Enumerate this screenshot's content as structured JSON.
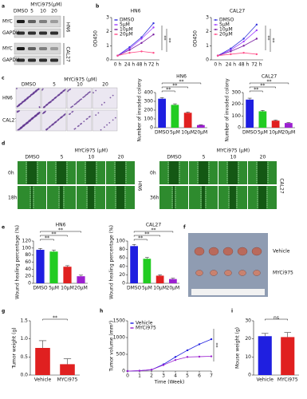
{
  "panel_labels": [
    "a",
    "b",
    "c",
    "d",
    "e",
    "f",
    "g",
    "h",
    "i"
  ],
  "blot": {
    "header": "MYCi975(μM)",
    "lanes": [
      "DMSO",
      "5",
      "10",
      "20"
    ],
    "rows": [
      "MYC",
      "GAPDH",
      "MYC",
      "GAPDH"
    ],
    "groups": [
      "HN6",
      "CAL27"
    ]
  },
  "colony": {
    "treatment": "MYCi975 (μM)",
    "columns": [
      "DMSO",
      "5",
      "10",
      "20"
    ],
    "rows": [
      "HN6",
      "CAL27"
    ]
  },
  "wound": [
    {
      "treatment": "MYCi975 (μM)",
      "columns": [
        "DMSO",
        "5",
        "10",
        "20"
      ],
      "rows": [
        "0h",
        "18h"
      ],
      "cell_line": "HN6"
    },
    {
      "treatment": "MYCi975 (μM)",
      "columns": [
        "DMSO",
        "5",
        "10",
        "20"
      ],
      "rows": [
        "0h",
        "36h"
      ],
      "cell_line": "CAL27"
    }
  ],
  "tumor_photo": {
    "rows": [
      "Vehicle",
      "MYCi975"
    ]
  },
  "chart_data": [
    {
      "type": "line",
      "title": "HN6",
      "y_label": "OD450",
      "categories": [
        "0 h",
        "24 h",
        "48 h",
        "72 h"
      ],
      "series": [
        {
          "name": "DMSO",
          "color": "#3535dd",
          "values": [
            0.3,
            0.9,
            1.6,
            2.6
          ]
        },
        {
          "name": "5μM",
          "color": "#a040ff",
          "values": [
            0.3,
            0.8,
            1.5,
            2.3
          ]
        },
        {
          "name": "10μM",
          "color": "#7a1fa2",
          "values": [
            0.3,
            0.7,
            1.2,
            1.8
          ]
        },
        {
          "name": "20μM",
          "color": "#ff4d88",
          "values": [
            0.3,
            0.5,
            0.6,
            0.5
          ]
        }
      ],
      "ylim": [
        0,
        3
      ],
      "yticks": [
        0,
        1,
        2,
        3
      ],
      "legend": "upper left",
      "annotations": [
        "**",
        "**"
      ]
    },
    {
      "type": "line",
      "title": "CAL27",
      "y_label": "OD450",
      "categories": [
        "0 h",
        "24 h",
        "48 h",
        "72 h"
      ],
      "series": [
        {
          "name": "DMSO",
          "color": "#3535dd",
          "values": [
            0.3,
            0.8,
            1.5,
            2.5
          ]
        },
        {
          "name": "5μM",
          "color": "#a040ff",
          "values": [
            0.3,
            0.7,
            1.3,
            2.1
          ]
        },
        {
          "name": "10μM",
          "color": "#7a1fa2",
          "values": [
            0.3,
            0.6,
            1.0,
            1.5
          ]
        },
        {
          "name": "20μM",
          "color": "#ff4d88",
          "values": [
            0.3,
            0.4,
            0.5,
            0.4
          ]
        }
      ],
      "ylim": [
        0,
        3
      ],
      "yticks": [
        0,
        1,
        2,
        3
      ],
      "legend": "upper left",
      "annotations": [
        "**",
        "**"
      ]
    },
    {
      "type": "bar",
      "title": "HN6",
      "y_label": "Number of invaded colony",
      "categories": [
        "DMSO",
        "5μM",
        "10μM",
        "20μM"
      ],
      "values": [
        330,
        260,
        170,
        30
      ],
      "errors": [
        12,
        12,
        8,
        4
      ],
      "colors": [
        "#1f1fe0",
        "#22cc22",
        "#e02020",
        "#9b20d0"
      ],
      "ylim": [
        0,
        400
      ],
      "yticks": [
        0,
        100,
        200,
        300,
        400
      ],
      "annotations": [
        "**",
        "**",
        "**"
      ]
    },
    {
      "type": "bar",
      "title": "CAL27",
      "y_label": "Number of invaded colony",
      "categories": [
        "DMSO",
        "5μM",
        "10μM",
        "20μM"
      ],
      "values": [
        240,
        140,
        60,
        40
      ],
      "errors": [
        12,
        8,
        5,
        4
      ],
      "colors": [
        "#1f1fe0",
        "#22cc22",
        "#e02020",
        "#9b20d0"
      ],
      "ylim": [
        0,
        300
      ],
      "yticks": [
        0,
        100,
        200,
        300
      ],
      "annotations": [
        "**",
        "**",
        "**"
      ]
    },
    {
      "type": "bar",
      "title": "HN6",
      "y_label": "Wound healing percentage (%)",
      "categories": [
        "DMSO",
        "5μM",
        "10μM",
        "20μM"
      ],
      "values": [
        95,
        90,
        47,
        20
      ],
      "errors": [
        4,
        4,
        3,
        3
      ],
      "colors": [
        "#1f1fe0",
        "#22cc22",
        "#e02020",
        "#9b20d0"
      ],
      "ylim": [
        0,
        120
      ],
      "yticks": [
        0,
        20,
        40,
        60,
        80,
        100,
        120
      ],
      "annotations": [
        "**",
        "**",
        "**"
      ]
    },
    {
      "type": "bar",
      "title": "CAL27",
      "y_label": "Wound healing percentage (%)",
      "categories": [
        "DMSO",
        "5μM",
        "10μM",
        "20μM"
      ],
      "values": [
        88,
        58,
        18,
        10
      ],
      "errors": [
        4,
        3,
        2,
        2
      ],
      "colors": [
        "#1f1fe0",
        "#22cc22",
        "#e02020",
        "#9b20d0"
      ],
      "ylim": [
        0,
        100
      ],
      "yticks": [
        0,
        20,
        40,
        60,
        80,
        100
      ],
      "annotations": [
        "**",
        "**",
        "**"
      ]
    },
    {
      "type": "bar",
      "y_label": "Tumor weight (g)",
      "categories": [
        "Vehicle",
        "MYCi975"
      ],
      "values": [
        0.75,
        0.3
      ],
      "errors": [
        0.2,
        0.15
      ],
      "colors": [
        "#e02020",
        "#e02020"
      ],
      "ylim": [
        0,
        1.5
      ],
      "yticks": [
        {
          "value": 0,
          "label": "0.0"
        },
        {
          "value": 0.5,
          "label": "0.5"
        },
        {
          "value": 1,
          "label": "1.0"
        },
        {
          "value": 1.5,
          "label": "1.5"
        }
      ],
      "annotations": [
        "**"
      ]
    },
    {
      "type": "line",
      "y_label": "Tumor volume (mm³)",
      "x_label": "Time (Week)",
      "x": [
        0,
        1,
        2,
        3,
        4,
        5,
        6,
        7
      ],
      "series": [
        {
          "name": "Vehicle",
          "color": "#1f1fe0",
          "values": [
            0,
            10,
            40,
            200,
            420,
            620,
            800,
            950
          ]
        },
        {
          "name": "MYCi975",
          "color": "#9b20d0",
          "values": [
            0,
            10,
            40,
            180,
            330,
            420,
            430,
            440
          ]
        }
      ],
      "xlim": [
        0,
        7
      ],
      "xticks": [
        0,
        1,
        2,
        3,
        4,
        5,
        6,
        7
      ],
      "ylim": [
        0,
        1500
      ],
      "yticks": [
        0,
        500,
        1000,
        1500
      ],
      "legend": "upper left",
      "annotations": [
        "**"
      ]
    },
    {
      "type": "bar",
      "y_label": "Mouse weight (g)",
      "categories": [
        "Vehicle",
        "MYCi975"
      ],
      "values": [
        21.5,
        21
      ],
      "errors": [
        1.5,
        2.5
      ],
      "colors": [
        "#1f1fe0",
        "#e02020"
      ],
      "ylim": [
        0,
        30
      ],
      "yticks": [
        0,
        10,
        20,
        30
      ],
      "annotations": [
        "ns"
      ]
    }
  ]
}
